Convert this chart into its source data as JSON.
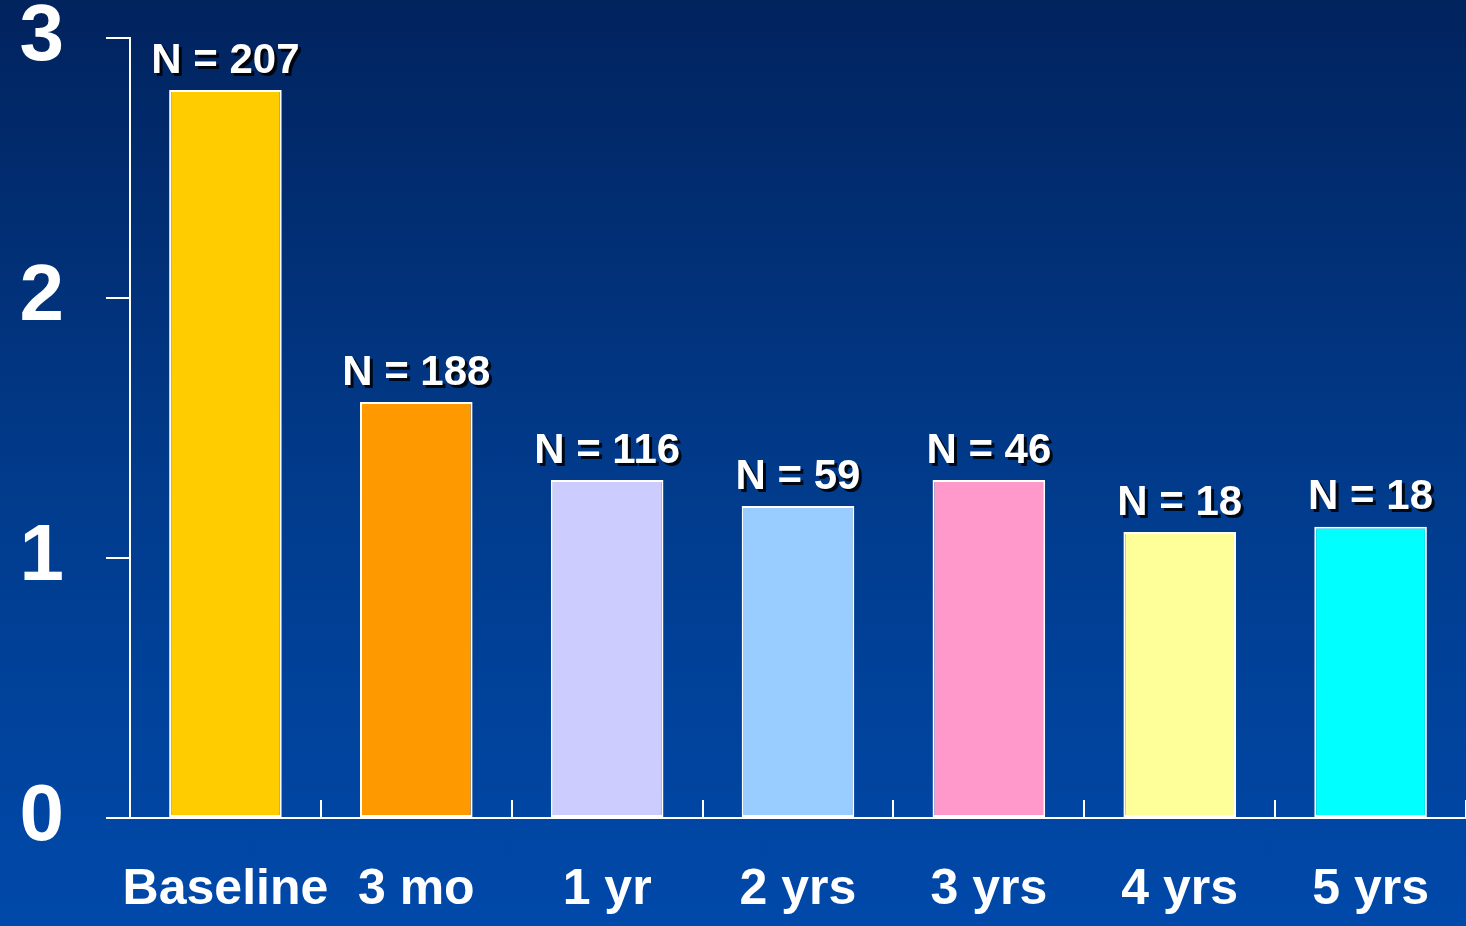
{
  "chart_data": {
    "type": "bar",
    "categories": [
      "Baseline",
      "3 mo",
      "1 yr",
      "2 yrs",
      "3 yrs",
      "4 yrs",
      "5 yrs"
    ],
    "values": [
      2.8,
      1.6,
      1.3,
      1.2,
      1.3,
      1.1,
      1.12
    ],
    "colors": [
      "#ffcc00",
      "#ff9900",
      "#ccccff",
      "#99ccff",
      "#ff99cc",
      "#ffff99",
      "#00ffff"
    ],
    "ylim": [
      0,
      3
    ],
    "yticks": [
      0,
      1,
      2,
      3
    ],
    "annotations": [
      {
        "text": "N = 207",
        "x": "Baseline",
        "y": 2.8
      },
      {
        "text": "N = 188",
        "x": "3 mo",
        "y": 1.6
      },
      {
        "text": "N = 116",
        "x": "1 yr",
        "y": 1.3
      },
      {
        "text": "N = 59",
        "x": "2 yrs",
        "y": 1.2
      },
      {
        "text": "N = 46",
        "x": "3 yrs",
        "y": 1.3
      },
      {
        "text": "N = 18",
        "x": "4 yrs",
        "y": 1.1
      },
      {
        "text": "N = 18",
        "x": "5 yrs",
        "y": 1.12
      }
    ]
  }
}
